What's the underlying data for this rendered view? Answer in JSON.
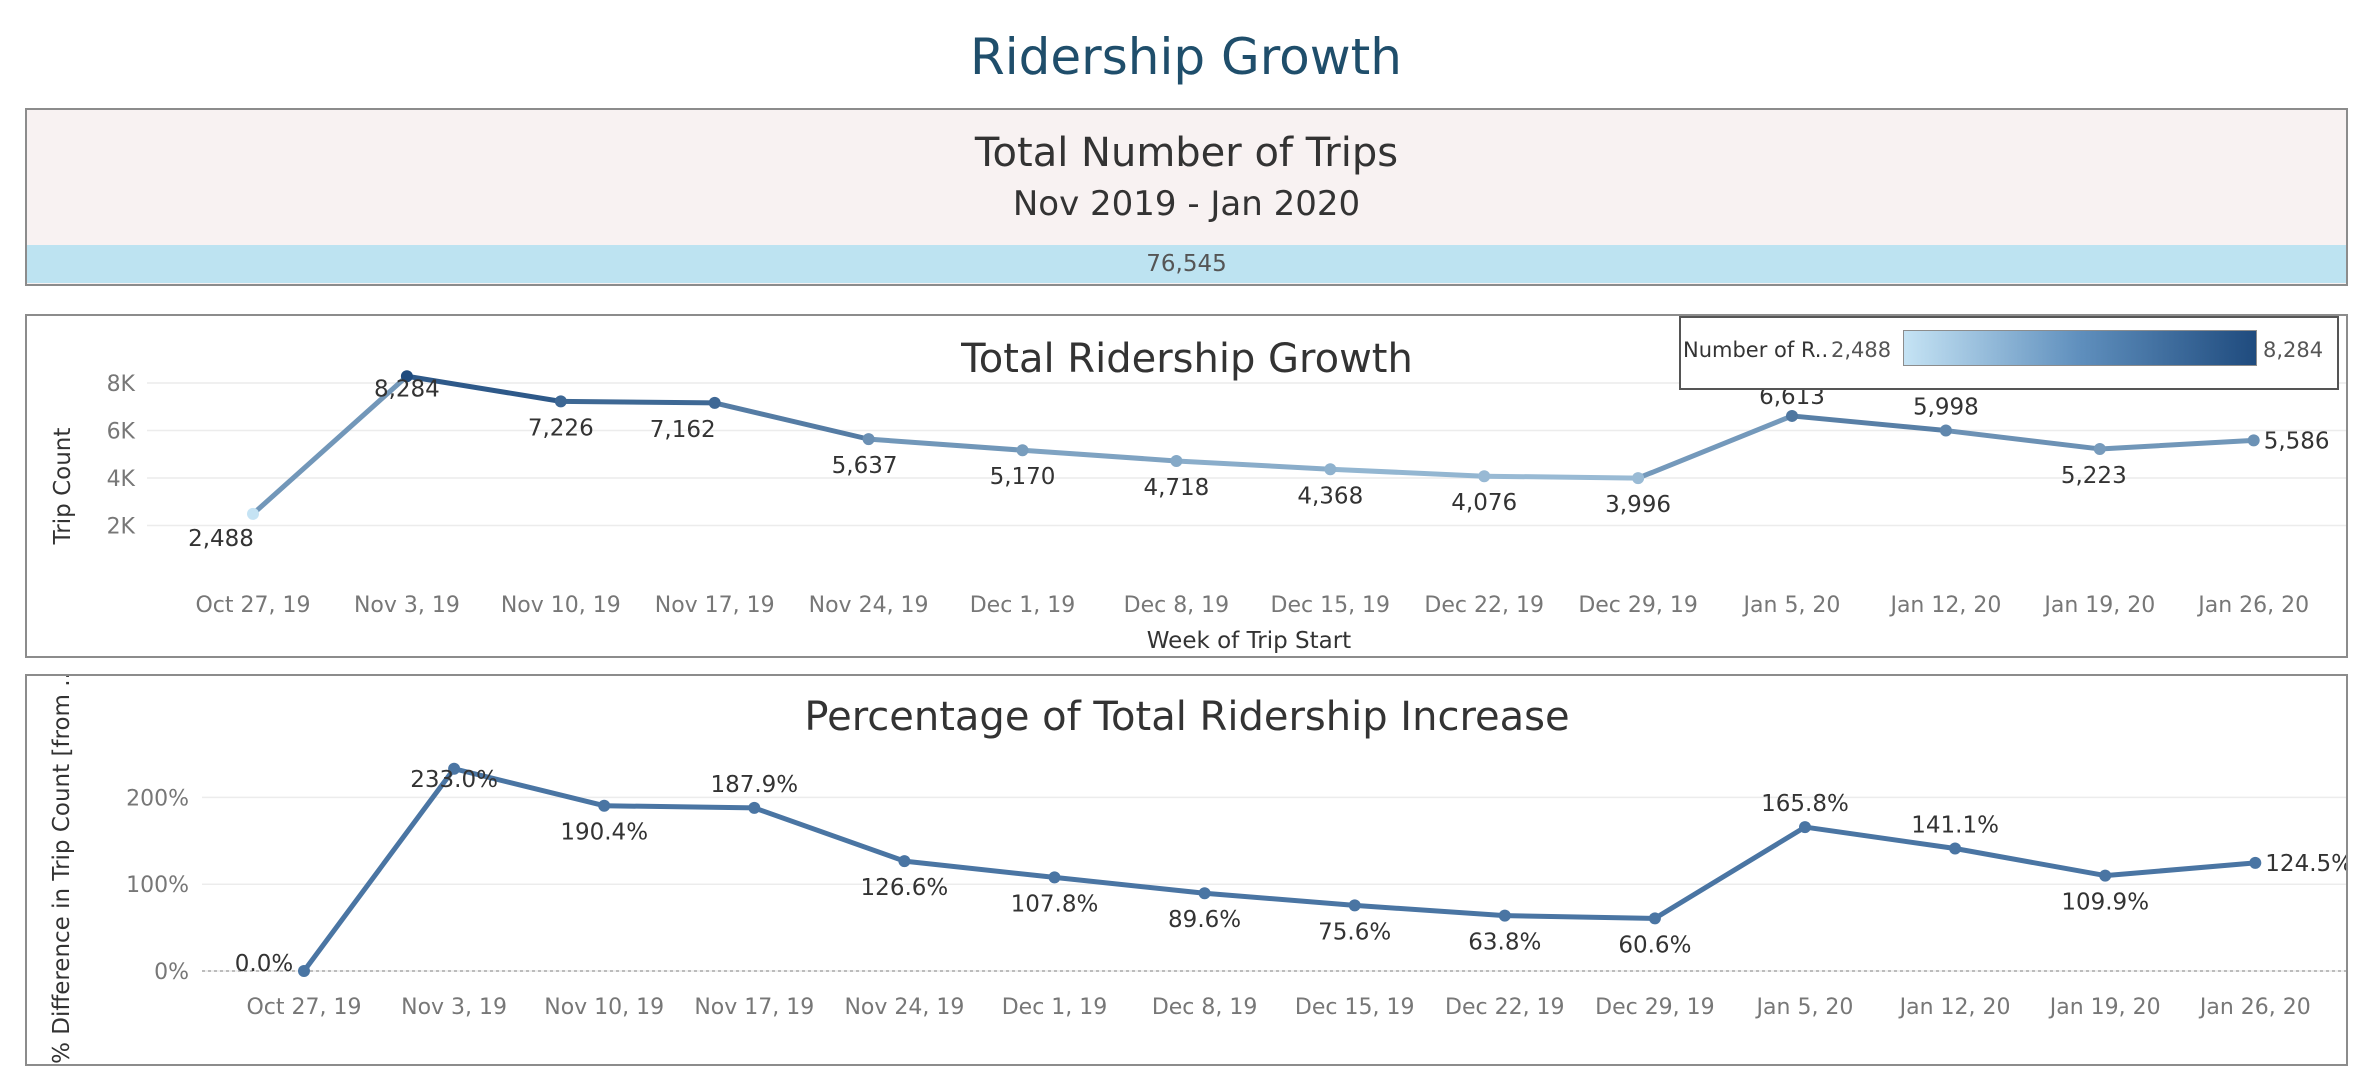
{
  "dashboard": {
    "title": "Ridership Growth"
  },
  "kpi": {
    "title": "Total Number of Trips",
    "subtitle": "Nov 2019 - Jan 2020",
    "value": "76,545",
    "bar_color": "#bde3f1"
  },
  "legend": {
    "label": "Number of R..",
    "min_label": "2,488",
    "max_label": "8,284",
    "color_low": "#c5e3f4",
    "color_high": "#1f4b7e"
  },
  "chart_data": [
    {
      "type": "line",
      "title": "Total Ridership Growth",
      "xlabel": "Week of Trip Start",
      "ylabel": "Trip Count",
      "categories": [
        "Oct 27, 19",
        "Nov 3, 19",
        "Nov 10, 19",
        "Nov 17, 19",
        "Nov 24, 19",
        "Dec 1, 19",
        "Dec 8, 19",
        "Dec 15, 19",
        "Dec 22, 19",
        "Dec 29, 19",
        "Jan 5, 20",
        "Jan 12, 20",
        "Jan 19, 20",
        "Jan 26, 20"
      ],
      "values": [
        2488,
        8284,
        7226,
        7162,
        5637,
        5170,
        4718,
        4368,
        4076,
        3996,
        6613,
        5998,
        5223,
        5586
      ],
      "data_labels": [
        "2,488",
        "8,284",
        "7,226",
        "7,162",
        "5,637",
        "5,170",
        "4,718",
        "4,368",
        "4,076",
        "3,996",
        "6,613",
        "5,998",
        "5,223",
        "5,586"
      ],
      "yticks": [
        2000,
        4000,
        6000,
        8000
      ],
      "ytick_labels": [
        "2K",
        "4K",
        "6K",
        "8K"
      ],
      "ylim": [
        0,
        8800
      ],
      "color_encoding": "sequential blue by value",
      "grid": true
    },
    {
      "type": "line",
      "title": "Percentage of Total Ridership Increase",
      "xlabel": "",
      "ylabel": "% Difference in Trip Count [from ..",
      "categories": [
        "Oct 27, 19",
        "Nov 3, 19",
        "Nov 10, 19",
        "Nov 17, 19",
        "Nov 24, 19",
        "Dec 1, 19",
        "Dec 8, 19",
        "Dec 15, 19",
        "Dec 22, 19",
        "Dec 29, 19",
        "Jan 5, 20",
        "Jan 12, 20",
        "Jan 19, 20",
        "Jan 26, 20"
      ],
      "values": [
        0.0,
        233.0,
        190.4,
        187.9,
        126.6,
        107.8,
        89.6,
        75.6,
        63.8,
        60.6,
        165.8,
        141.1,
        109.9,
        124.5
      ],
      "data_labels": [
        "0.0%",
        "233.0%",
        "190.4%",
        "187.9%",
        "126.6%",
        "107.8%",
        "89.6%",
        "75.6%",
        "63.8%",
        "60.6%",
        "165.8%",
        "141.1%",
        "109.9%",
        "124.5%"
      ],
      "yticks": [
        0,
        100,
        200
      ],
      "ytick_labels": [
        "0%",
        "100%",
        "200%"
      ],
      "ylim": [
        -15,
        250
      ],
      "color": "#4a75a3",
      "grid": true
    }
  ]
}
